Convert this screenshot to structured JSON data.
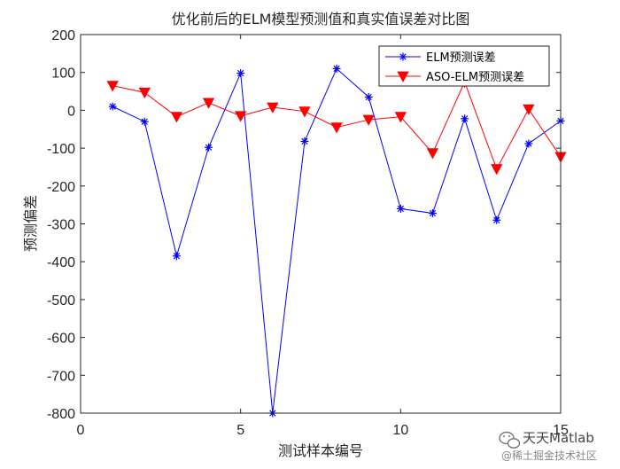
{
  "chart_data": {
    "type": "line",
    "title": "优化前后的ELM模型预测值和真实值误差对比图",
    "xlabel": "测试样本编号",
    "ylabel": "预测偏差",
    "xlim": [
      0,
      15
    ],
    "ylim": [
      -800,
      200
    ],
    "xticks": [
      0,
      5,
      10,
      15
    ],
    "yticks": [
      200,
      100,
      0,
      -100,
      -200,
      -300,
      -400,
      -500,
      -600,
      -700,
      -800
    ],
    "grid": false,
    "legend_position": "top-right",
    "x": [
      1,
      2,
      3,
      4,
      5,
      6,
      7,
      8,
      9,
      10,
      11,
      12,
      13,
      14,
      15
    ],
    "series": [
      {
        "name": "ELM预测误差",
        "color": "#0000ff",
        "marker": "asterisk",
        "values": [
          10,
          -30,
          -385,
          -98,
          98,
          -800,
          -82,
          110,
          35,
          -260,
          -272,
          -22,
          -290,
          -88,
          -28
        ]
      },
      {
        "name": "ASO-ELM预测误差",
        "color": "#ff0000",
        "marker": "triangle-down",
        "values": [
          65,
          47,
          -17,
          20,
          -15,
          8,
          -3,
          -45,
          -25,
          -17,
          -113,
          75,
          -155,
          3,
          -123
        ]
      }
    ]
  },
  "watermark": {
    "line1": "天天Matlab",
    "line2": "@稀土掘金技术社区"
  }
}
